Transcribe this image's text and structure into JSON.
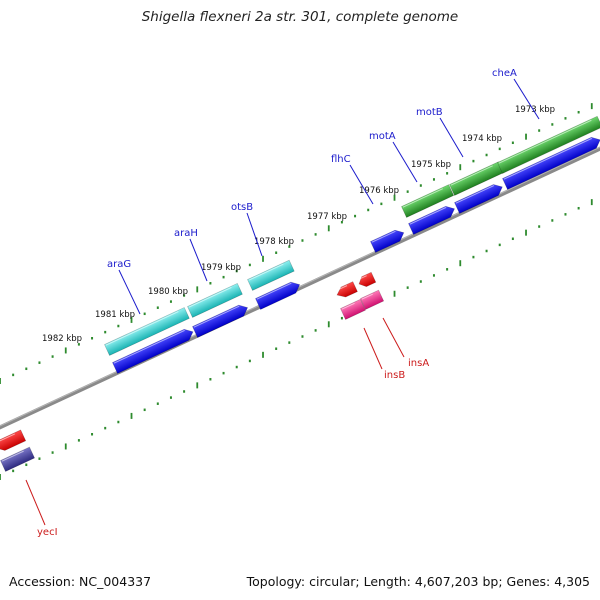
{
  "title": "Shigella flexneri 2a str. 301, complete genome",
  "footer": {
    "accession": "Accession: NC_004337",
    "info": "Topology: circular; Length: 4,607,203 bp; Genes: 4,305"
  },
  "colors": {
    "backbone": "#8a8a8a",
    "ticks": "#2e8b2e",
    "forward_label": "#1c1ccc",
    "reverse_label": "#cc1c1c"
  },
  "kbp_markers": [
    {
      "value": 1973,
      "label": "1973 kbp"
    },
    {
      "value": 1974,
      "label": "1974 kbp"
    },
    {
      "value": 1975,
      "label": "1975 kbp"
    },
    {
      "value": 1976,
      "label": "1976 kbp"
    },
    {
      "value": 1977,
      "label": "1977 kbp"
    },
    {
      "value": 1978,
      "label": "1978 kbp"
    },
    {
      "value": 1979,
      "label": "1979 kbp"
    },
    {
      "value": 1980,
      "label": "1980 kbp"
    },
    {
      "value": 1981,
      "label": "1981 kbp"
    },
    {
      "value": 1982,
      "label": "1982 kbp"
    }
  ],
  "labeled_genes": [
    {
      "name": "cheA",
      "strand": "forward"
    },
    {
      "name": "motB",
      "strand": "forward"
    },
    {
      "name": "motA",
      "strand": "forward"
    },
    {
      "name": "flhC",
      "strand": "forward"
    },
    {
      "name": "otsB",
      "strand": "forward"
    },
    {
      "name": "araH",
      "strand": "forward"
    },
    {
      "name": "araG",
      "strand": "forward"
    },
    {
      "name": "insA",
      "strand": "reverse"
    },
    {
      "name": "insB",
      "strand": "reverse"
    },
    {
      "name": "yecI",
      "strand": "reverse"
    }
  ]
}
